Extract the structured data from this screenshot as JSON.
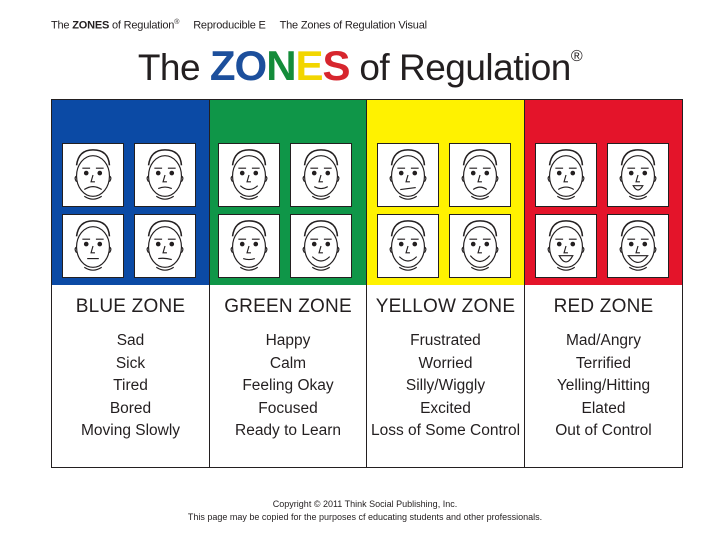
{
  "header": {
    "brand_prefix": "The ",
    "brand_bold": "ZONES",
    "brand_suffix": " of Regulation",
    "registered": "®",
    "reproducible": "Reproducible E",
    "visual_title": "The Zones of Regulation Visual"
  },
  "title": {
    "prefix": "The ",
    "letters": [
      {
        "char": "Z",
        "color": "#1c4f9c"
      },
      {
        "char": "O",
        "color": "#1c4f9c"
      },
      {
        "char": "N",
        "color": "#148c3a"
      },
      {
        "char": "E",
        "color": "#f2d600"
      },
      {
        "char": "S",
        "color": "#d7262e"
      }
    ],
    "suffix": " of Regulation",
    "registered": "®"
  },
  "zones": [
    {
      "name": "BLUE ZONE",
      "color": "#0b4aa5",
      "face_icons": [
        "sad-face-icon",
        "sick-face-icon",
        "tired-face-icon",
        "bored-face-icon"
      ],
      "feelings": [
        "Sad",
        "Sick",
        "Tired",
        "Bored",
        "Moving Slowly"
      ]
    },
    {
      "name": "GREEN ZONE",
      "color": "#0f9648",
      "face_icons": [
        "happy-face-icon",
        "calm-face-icon",
        "focused-face-icon",
        "waving-face-icon"
      ],
      "feelings": [
        "Happy",
        "Calm",
        "Feeling Okay",
        "Focused",
        "Ready to Learn"
      ]
    },
    {
      "name": "YELLOW ZONE",
      "color": "#fff200",
      "face_icons": [
        "frustrated-face-icon",
        "worried-face-icon",
        "silly-face-icon",
        "excited-face-icon"
      ],
      "feelings": [
        "Frustrated",
        "Worried",
        "Silly/Wiggly",
        "Excited",
        "Loss of Some Control"
      ]
    },
    {
      "name": "RED ZONE",
      "color": "#e4142a",
      "face_icons": [
        "mad-face-icon",
        "terrified-face-icon",
        "yelling-face-icon",
        "elated-face-icon"
      ],
      "feelings": [
        "Mad/Angry",
        "Terrified",
        "Yelling/Hitting",
        "Elated",
        "Out of Control"
      ]
    }
  ],
  "footer": {
    "copyright": "Copyright © 2011 Think Social Publishing, Inc.",
    "permission": "This page may be copied for the purposes cf educating students and other professionals."
  }
}
